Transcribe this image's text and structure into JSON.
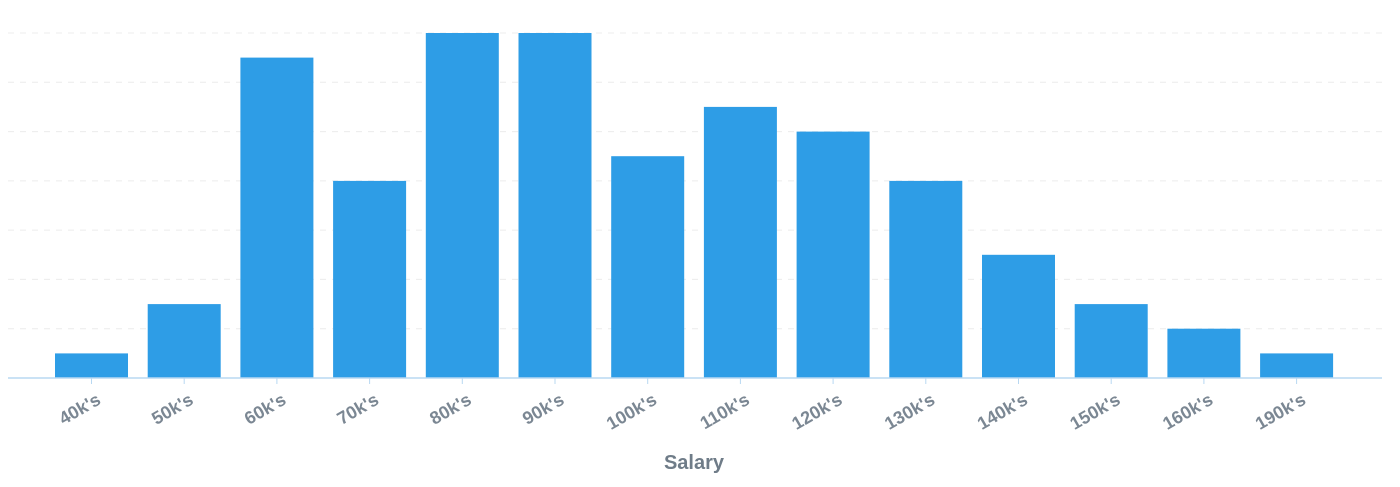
{
  "chart_data": {
    "type": "bar",
    "title": "",
    "xlabel": "Salary",
    "ylabel": "",
    "categories": [
      "40k's",
      "50k's",
      "60k's",
      "70k's",
      "80k's",
      "90k's",
      "100k's",
      "110k's",
      "120k's",
      "130k's",
      "140k's",
      "150k's",
      "160k's",
      "190k's"
    ],
    "values": [
      1,
      3,
      13,
      8,
      14,
      14,
      9,
      11,
      10,
      8,
      5,
      3,
      2,
      1
    ],
    "ylim": [
      0,
      14
    ],
    "grid": true,
    "gridline_values": [
      2,
      4,
      6,
      8,
      10,
      12,
      14
    ],
    "bar_color": "#2e9de6",
    "legend": "none"
  }
}
